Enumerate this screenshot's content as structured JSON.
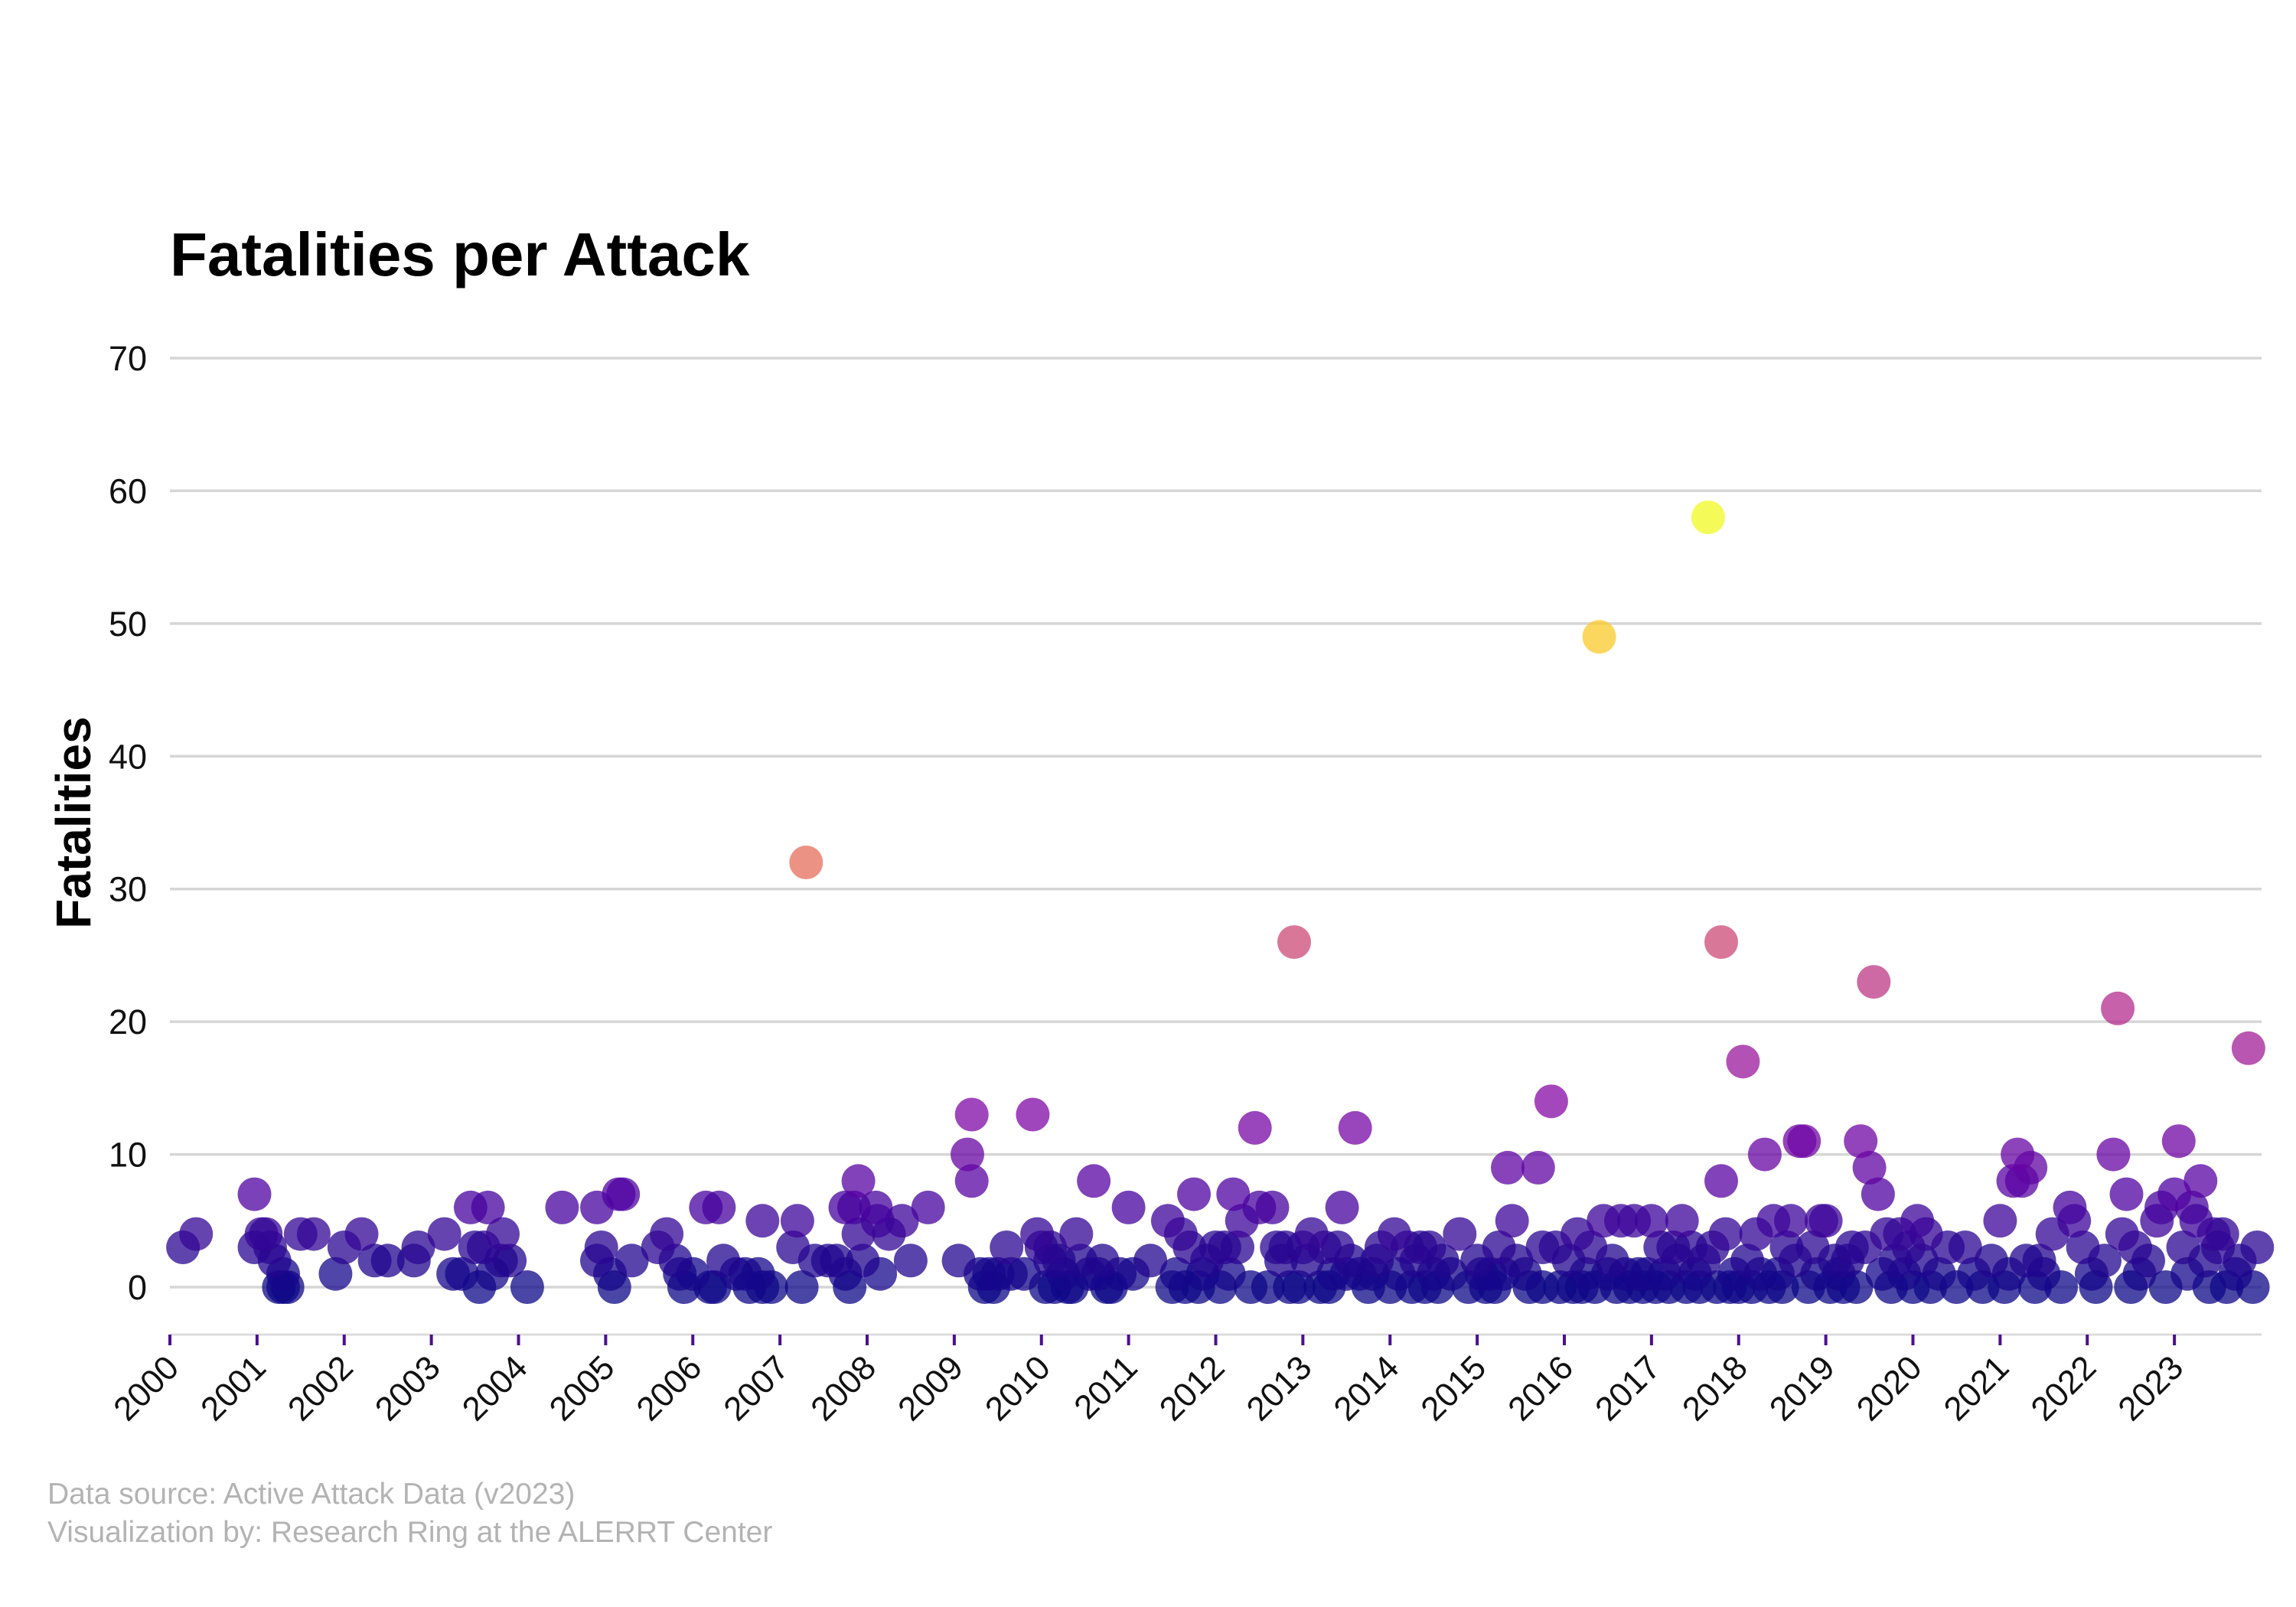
{
  "chart_data": {
    "type": "scatter",
    "title": "Fatalities per Attack",
    "xlabel": "",
    "ylabel": "Fatalities",
    "xlim": [
      2000.0,
      2024.0
    ],
    "ylim": [
      -3.5,
      72
    ],
    "y_ticks": [
      0,
      10,
      20,
      30,
      40,
      50,
      60,
      70
    ],
    "x_ticks": [
      "2000",
      "2001",
      "2002",
      "2003",
      "2004",
      "2005",
      "2006",
      "2007",
      "2008",
      "2009",
      "2010",
      "2011",
      "2012",
      "2013",
      "2014",
      "2015",
      "2016",
      "2017",
      "2018",
      "2019",
      "2020",
      "2021",
      "2022",
      "2023"
    ],
    "grid": "horizontal",
    "color_scale": "plasma (color by fatalities, 0 = dark blue, 58 = yellow)",
    "marker_opacity": 0.75,
    "points": [
      [
        2000.15,
        3
      ],
      [
        2000.3,
        4
      ],
      [
        2000.97,
        7
      ],
      [
        2000.97,
        3
      ],
      [
        2001.05,
        4
      ],
      [
        2001.1,
        4
      ],
      [
        2001.15,
        3
      ],
      [
        2001.2,
        2
      ],
      [
        2001.25,
        0
      ],
      [
        2001.3,
        0
      ],
      [
        2001.35,
        0
      ],
      [
        2001.3,
        1
      ],
      [
        2001.5,
        4
      ],
      [
        2001.65,
        4
      ],
      [
        2001.9,
        1
      ],
      [
        2002.0,
        3
      ],
      [
        2002.2,
        4
      ],
      [
        2002.35,
        2
      ],
      [
        2002.5,
        2
      ],
      [
        2002.8,
        2
      ],
      [
        2002.85,
        3
      ],
      [
        2003.15,
        4
      ],
      [
        2003.25,
        1
      ],
      [
        2003.35,
        1
      ],
      [
        2003.45,
        6
      ],
      [
        2003.5,
        3
      ],
      [
        2003.55,
        0
      ],
      [
        2003.6,
        3
      ],
      [
        2003.65,
        6
      ],
      [
        2003.7,
        1
      ],
      [
        2003.8,
        2
      ],
      [
        2003.82,
        4
      ],
      [
        2003.9,
        2
      ],
      [
        2004.1,
        0
      ],
      [
        2004.5,
        6
      ],
      [
        2004.9,
        6
      ],
      [
        2004.9,
        2
      ],
      [
        2004.95,
        3
      ],
      [
        2005.05,
        1
      ],
      [
        2005.1,
        0
      ],
      [
        2005.15,
        7
      ],
      [
        2005.2,
        7
      ],
      [
        2005.3,
        2
      ],
      [
        2005.6,
        3
      ],
      [
        2005.7,
        4
      ],
      [
        2005.8,
        2
      ],
      [
        2005.85,
        1
      ],
      [
        2005.9,
        0
      ],
      [
        2006.0,
        1
      ],
      [
        2006.15,
        6
      ],
      [
        2006.2,
        0
      ],
      [
        2006.25,
        0
      ],
      [
        2006.3,
        6
      ],
      [
        2006.35,
        2
      ],
      [
        2006.5,
        1
      ],
      [
        2006.6,
        1
      ],
      [
        2006.65,
        0
      ],
      [
        2006.75,
        1
      ],
      [
        2006.8,
        0
      ],
      [
        2006.8,
        5
      ],
      [
        2006.9,
        0
      ],
      [
        2007.2,
        5
      ],
      [
        2007.25,
        0
      ],
      [
        2007.15,
        3
      ],
      [
        2007.4,
        2
      ],
      [
        2007.3,
        32
      ],
      [
        2007.55,
        2
      ],
      [
        2007.65,
        2
      ],
      [
        2007.75,
        1
      ],
      [
        2007.75,
        6
      ],
      [
        2007.8,
        0
      ],
      [
        2007.85,
        6
      ],
      [
        2007.9,
        8
      ],
      [
        2007.9,
        4
      ],
      [
        2007.95,
        2
      ],
      [
        2008.1,
        6
      ],
      [
        2008.12,
        5
      ],
      [
        2008.15,
        1
      ],
      [
        2008.25,
        4
      ],
      [
        2008.4,
        5
      ],
      [
        2008.5,
        2
      ],
      [
        2008.7,
        6
      ],
      [
        2009.05,
        2
      ],
      [
        2009.15,
        10
      ],
      [
        2009.2,
        13
      ],
      [
        2009.2,
        8
      ],
      [
        2009.3,
        1
      ],
      [
        2009.35,
        0
      ],
      [
        2009.4,
        1
      ],
      [
        2009.45,
        0
      ],
      [
        2009.5,
        1
      ],
      [
        2009.6,
        3
      ],
      [
        2009.65,
        1
      ],
      [
        2009.8,
        1
      ],
      [
        2009.9,
        13
      ],
      [
        2009.95,
        4
      ],
      [
        2010.0,
        3
      ],
      [
        2010.05,
        0
      ],
      [
        2010.1,
        2
      ],
      [
        2010.1,
        3
      ],
      [
        2010.15,
        0
      ],
      [
        2010.2,
        2
      ],
      [
        2010.25,
        1
      ],
      [
        2010.3,
        0
      ],
      [
        2010.35,
        0
      ],
      [
        2010.4,
        4
      ],
      [
        2010.45,
        2
      ],
      [
        2010.55,
        1
      ],
      [
        2010.6,
        8
      ],
      [
        2010.65,
        1
      ],
      [
        2010.7,
        2
      ],
      [
        2010.75,
        0
      ],
      [
        2010.8,
        0
      ],
      [
        2010.9,
        1
      ],
      [
        2011.0,
        6
      ],
      [
        2011.05,
        1
      ],
      [
        2011.25,
        2
      ],
      [
        2011.45,
        5
      ],
      [
        2011.5,
        0
      ],
      [
        2011.55,
        1
      ],
      [
        2011.6,
        4
      ],
      [
        2011.65,
        0
      ],
      [
        2011.7,
        3
      ],
      [
        2011.75,
        7
      ],
      [
        2011.8,
        0
      ],
      [
        2011.85,
        1
      ],
      [
        2011.9,
        2
      ],
      [
        2012.0,
        3
      ],
      [
        2012.05,
        0
      ],
      [
        2012.1,
        3
      ],
      [
        2012.15,
        1
      ],
      [
        2012.2,
        7
      ],
      [
        2012.25,
        3
      ],
      [
        2012.3,
        5
      ],
      [
        2012.4,
        0
      ],
      [
        2012.45,
        12
      ],
      [
        2012.5,
        6
      ],
      [
        2012.6,
        0
      ],
      [
        2012.65,
        6
      ],
      [
        2012.7,
        3
      ],
      [
        2012.75,
        2
      ],
      [
        2012.8,
        3
      ],
      [
        2012.85,
        0
      ],
      [
        2012.9,
        26
      ],
      [
        2012.95,
        0
      ],
      [
        2013.0,
        3
      ],
      [
        2013.05,
        2
      ],
      [
        2013.1,
        4
      ],
      [
        2013.2,
        0
      ],
      [
        2013.25,
        3
      ],
      [
        2013.3,
        0
      ],
      [
        2013.35,
        1
      ],
      [
        2013.4,
        3
      ],
      [
        2013.45,
        6
      ],
      [
        2013.5,
        1
      ],
      [
        2013.55,
        2
      ],
      [
        2013.6,
        12
      ],
      [
        2013.65,
        1
      ],
      [
        2013.75,
        0
      ],
      [
        2013.8,
        1
      ],
      [
        2013.85,
        2
      ],
      [
        2013.9,
        3
      ],
      [
        2014.0,
        0
      ],
      [
        2014.05,
        4
      ],
      [
        2014.1,
        1
      ],
      [
        2014.2,
        3
      ],
      [
        2014.25,
        0
      ],
      [
        2014.3,
        2
      ],
      [
        2014.35,
        3
      ],
      [
        2014.4,
        0
      ],
      [
        2014.45,
        3
      ],
      [
        2014.5,
        1
      ],
      [
        2014.55,
        0
      ],
      [
        2014.6,
        2
      ],
      [
        2014.7,
        1
      ],
      [
        2014.8,
        4
      ],
      [
        2014.9,
        0
      ],
      [
        2015.0,
        2
      ],
      [
        2015.05,
        1
      ],
      [
        2015.1,
        0
      ],
      [
        2015.15,
        1
      ],
      [
        2015.2,
        0
      ],
      [
        2015.25,
        3
      ],
      [
        2015.3,
        1
      ],
      [
        2015.35,
        9
      ],
      [
        2015.4,
        5
      ],
      [
        2015.45,
        2
      ],
      [
        2015.55,
        1
      ],
      [
        2015.6,
        0
      ],
      [
        2015.7,
        9
      ],
      [
        2015.75,
        0
      ],
      [
        2015.75,
        3
      ],
      [
        2015.85,
        14
      ],
      [
        2015.9,
        3
      ],
      [
        2015.95,
        0
      ],
      [
        2016.05,
        2
      ],
      [
        2016.1,
        0
      ],
      [
        2016.15,
        4
      ],
      [
        2016.2,
        0
      ],
      [
        2016.25,
        1
      ],
      [
        2016.3,
        3
      ],
      [
        2016.35,
        0
      ],
      [
        2016.4,
        49
      ],
      [
        2016.45,
        5
      ],
      [
        2016.5,
        1
      ],
      [
        2016.55,
        2
      ],
      [
        2016.6,
        0
      ],
      [
        2016.65,
        5
      ],
      [
        2016.7,
        1
      ],
      [
        2016.75,
        0
      ],
      [
        2016.8,
        5
      ],
      [
        2016.85,
        1
      ],
      [
        2016.9,
        0
      ],
      [
        2016.95,
        1
      ],
      [
        2017.0,
        5
      ],
      [
        2017.05,
        0
      ],
      [
        2017.1,
        3
      ],
      [
        2017.15,
        1
      ],
      [
        2017.2,
        0
      ],
      [
        2017.25,
        3
      ],
      [
        2017.3,
        2
      ],
      [
        2017.35,
        5
      ],
      [
        2017.4,
        0
      ],
      [
        2017.45,
        3
      ],
      [
        2017.5,
        1
      ],
      [
        2017.55,
        0
      ],
      [
        2017.6,
        2
      ],
      [
        2017.65,
        58
      ],
      [
        2017.7,
        3
      ],
      [
        2017.75,
        0
      ],
      [
        2017.8,
        8
      ],
      [
        2017.8,
        26
      ],
      [
        2017.85,
        4
      ],
      [
        2017.9,
        0
      ],
      [
        2017.95,
        1
      ],
      [
        2018.0,
        0
      ],
      [
        2018.05,
        17
      ],
      [
        2018.1,
        2
      ],
      [
        2018.15,
        0
      ],
      [
        2018.2,
        4
      ],
      [
        2018.25,
        1
      ],
      [
        2018.3,
        10
      ],
      [
        2018.35,
        0
      ],
      [
        2018.4,
        5
      ],
      [
        2018.45,
        1
      ],
      [
        2018.5,
        0
      ],
      [
        2018.55,
        3
      ],
      [
        2018.6,
        5
      ],
      [
        2018.65,
        2
      ],
      [
        2018.7,
        11
      ],
      [
        2018.75,
        11
      ],
      [
        2018.8,
        0
      ],
      [
        2018.85,
        3
      ],
      [
        2018.9,
        1
      ],
      [
        2018.95,
        5
      ],
      [
        2019.0,
        5
      ],
      [
        2019.05,
        0
      ],
      [
        2019.1,
        2
      ],
      [
        2019.15,
        1
      ],
      [
        2019.2,
        0
      ],
      [
        2019.25,
        2
      ],
      [
        2019.3,
        3
      ],
      [
        2019.35,
        0
      ],
      [
        2019.4,
        11
      ],
      [
        2019.45,
        3
      ],
      [
        2019.5,
        9
      ],
      [
        2019.55,
        23
      ],
      [
        2019.6,
        7
      ],
      [
        2019.65,
        1
      ],
      [
        2019.7,
        4
      ],
      [
        2019.75,
        0
      ],
      [
        2019.8,
        2
      ],
      [
        2019.85,
        4
      ],
      [
        2019.9,
        1
      ],
      [
        2019.95,
        3
      ],
      [
        2020.0,
        0
      ],
      [
        2020.05,
        5
      ],
      [
        2020.1,
        2
      ],
      [
        2020.15,
        4
      ],
      [
        2020.2,
        0
      ],
      [
        2020.3,
        1
      ],
      [
        2020.4,
        3
      ],
      [
        2020.5,
        0
      ],
      [
        2020.6,
        3
      ],
      [
        2020.7,
        1
      ],
      [
        2020.8,
        0
      ],
      [
        2020.9,
        2
      ],
      [
        2021.0,
        5
      ],
      [
        2021.05,
        0
      ],
      [
        2021.1,
        1
      ],
      [
        2021.15,
        8
      ],
      [
        2021.2,
        10
      ],
      [
        2021.25,
        8
      ],
      [
        2021.3,
        2
      ],
      [
        2021.35,
        9
      ],
      [
        2021.4,
        0
      ],
      [
        2021.45,
        2
      ],
      [
        2021.5,
        1
      ],
      [
        2021.6,
        4
      ],
      [
        2021.7,
        0
      ],
      [
        2021.8,
        6
      ],
      [
        2021.85,
        5
      ],
      [
        2021.95,
        3
      ],
      [
        2022.05,
        1
      ],
      [
        2022.1,
        0
      ],
      [
        2022.2,
        2
      ],
      [
        2022.3,
        10
      ],
      [
        2022.35,
        21
      ],
      [
        2022.4,
        4
      ],
      [
        2022.45,
        7
      ],
      [
        2022.5,
        0
      ],
      [
        2022.55,
        3
      ],
      [
        2022.6,
        1
      ],
      [
        2022.7,
        2
      ],
      [
        2022.8,
        5
      ],
      [
        2022.85,
        6
      ],
      [
        2022.9,
        0
      ],
      [
        2023.0,
        7
      ],
      [
        2023.05,
        11
      ],
      [
        2023.1,
        3
      ],
      [
        2023.15,
        1
      ],
      [
        2023.2,
        6
      ],
      [
        2023.25,
        5
      ],
      [
        2023.3,
        8
      ],
      [
        2023.35,
        2
      ],
      [
        2023.4,
        0
      ],
      [
        2023.45,
        4
      ],
      [
        2023.5,
        3
      ],
      [
        2023.55,
        4
      ],
      [
        2023.6,
        0
      ],
      [
        2023.7,
        1
      ],
      [
        2023.75,
        2
      ],
      [
        2023.85,
        18
      ],
      [
        2023.9,
        0
      ],
      [
        2023.95,
        3
      ]
    ],
    "annotations": []
  },
  "caption": {
    "line1": "Data source: Active Attack Data (v2023)",
    "line2": "Visualization by: Research Ring at the ALERRT Center"
  },
  "colors": {
    "grid": "#d6d6d6",
    "tick": "#4b0f8f",
    "caption": "#b3b3b3"
  }
}
